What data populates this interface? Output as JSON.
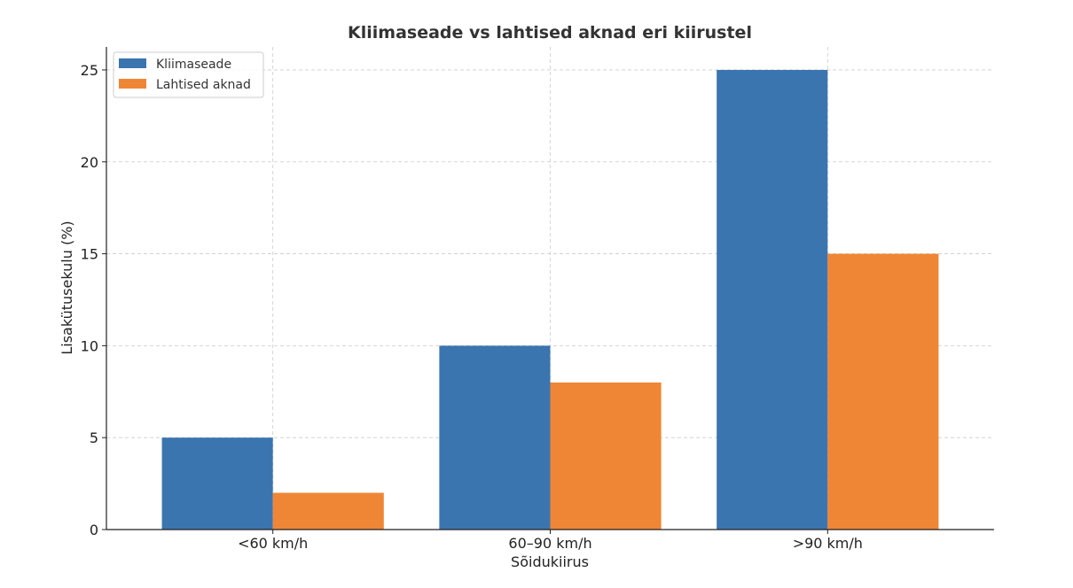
{
  "chart_data": {
    "type": "bar",
    "title": "Kliimaseade vs lahtised aknad eri kiirustel",
    "xlabel": "Sõidukiirus",
    "ylabel": "Lisakütusekulu (%)",
    "categories": [
      "<60 km/h",
      "60–90 km/h",
      ">90 km/h"
    ],
    "series": [
      {
        "name": "Kliimaseade",
        "values": [
          5,
          10,
          25
        ],
        "color": "#3b75af"
      },
      {
        "name": "Lahtised aknad",
        "values": [
          2,
          8,
          15
        ],
        "color": "#ef8636"
      }
    ],
    "ylim": [
      0,
      26.25
    ],
    "yticks": [
      0,
      5,
      10,
      15,
      20,
      25
    ],
    "grid": true,
    "legend": "top-left"
  }
}
